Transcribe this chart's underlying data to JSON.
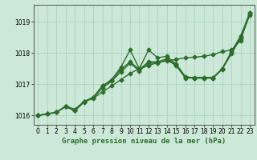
{
  "title": "Graphe pression niveau de la mer (hPa)",
  "background_color": "#cce8d8",
  "grid_color": "#aaccbb",
  "line_color": "#2d6e2d",
  "xlim": [
    -0.5,
    23.5
  ],
  "ylim": [
    1015.7,
    1019.55
  ],
  "yticks": [
    1016,
    1017,
    1018,
    1019
  ],
  "xticks": [
    0,
    1,
    2,
    3,
    4,
    5,
    6,
    7,
    8,
    9,
    10,
    11,
    12,
    13,
    14,
    15,
    16,
    17,
    18,
    19,
    20,
    21,
    22,
    23
  ],
  "series": [
    [
      1016.0,
      1016.05,
      1016.1,
      1016.3,
      1016.2,
      1016.45,
      1016.55,
      1016.75,
      1016.95,
      1017.15,
      1017.35,
      1017.5,
      1017.6,
      1017.7,
      1017.75,
      1017.8,
      1017.85,
      1017.87,
      1017.9,
      1017.95,
      1018.05,
      1018.1,
      1018.4,
      1019.3
    ],
    [
      1016.0,
      1016.05,
      1016.1,
      1016.3,
      1016.15,
      1016.45,
      1016.58,
      1016.95,
      1017.15,
      1017.55,
      1018.1,
      1017.5,
      1018.1,
      1017.85,
      1017.9,
      1017.65,
      1017.25,
      1017.2,
      1017.2,
      1017.2,
      1017.5,
      1018.05,
      1018.55,
      1019.3
    ],
    [
      1016.0,
      1016.05,
      1016.1,
      1016.3,
      1016.15,
      1016.45,
      1016.58,
      1016.95,
      1017.12,
      1017.48,
      1017.72,
      1017.48,
      1017.72,
      1017.72,
      1017.82,
      1017.62,
      1017.22,
      1017.22,
      1017.22,
      1017.22,
      1017.5,
      1018.0,
      1018.5,
      1019.25
    ],
    [
      1016.0,
      1016.05,
      1016.1,
      1016.28,
      1016.15,
      1016.43,
      1016.56,
      1016.88,
      1017.1,
      1017.4,
      1017.68,
      1017.43,
      1017.68,
      1017.68,
      1017.78,
      1017.6,
      1017.2,
      1017.2,
      1017.2,
      1017.2,
      1017.48,
      1017.98,
      1018.48,
      1019.22
    ]
  ],
  "marker": "D",
  "markersize": 2.5,
  "linewidth": 1.0,
  "xlabel_fontsize": 6.5,
  "tick_fontsize": 5.5,
  "figwidth": 3.2,
  "figheight": 2.0,
  "dpi": 100
}
